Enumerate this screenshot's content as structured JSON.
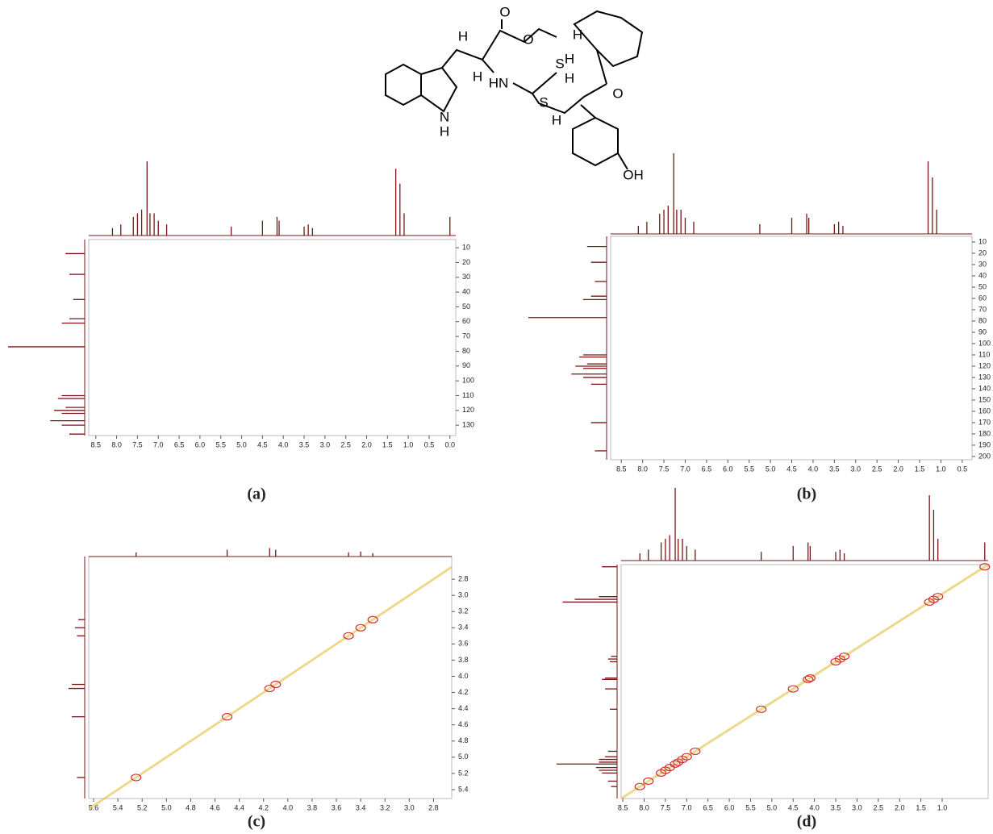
{
  "structure": {
    "labels": [
      "O",
      "O",
      "S",
      "HN",
      "H",
      "H",
      "H",
      "H",
      "H",
      "O",
      "S",
      "H",
      "N",
      "H",
      "OH"
    ]
  },
  "proton_peaks": [
    8.1,
    7.9,
    7.6,
    7.5,
    7.4,
    7.27,
    7.2,
    7.1,
    7.0,
    6.8,
    5.25,
    4.5,
    4.15,
    4.1,
    3.5,
    3.4,
    3.3,
    1.3,
    1.2,
    1.1,
    0.0
  ],
  "proton_heights": [
    0.1,
    0.15,
    0.25,
    0.3,
    0.35,
    1.0,
    0.3,
    0.3,
    0.2,
    0.15,
    0.12,
    0.2,
    0.25,
    0.2,
    0.12,
    0.15,
    0.1,
    0.9,
    0.7,
    0.3,
    0.25
  ],
  "carbon_peaks": [
    14,
    28,
    45,
    58,
    61,
    77,
    110,
    112,
    118,
    120,
    122,
    127,
    130,
    136,
    170,
    195
  ],
  "carbon_heights": [
    0.25,
    0.2,
    0.15,
    0.2,
    0.3,
    1.0,
    0.3,
    0.35,
    0.25,
    0.4,
    0.3,
    0.45,
    0.3,
    0.2,
    0.2,
    0.15
  ],
  "panels": [
    {
      "label": "(a)",
      "xlim": [
        8.67,
        -0.14
      ],
      "ylim": [
        137,
        4.5
      ],
      "xticks": [
        8.5,
        {
          "value": 8,
          "label": "8.0"
        },
        7.5,
        {
          "value": 7,
          "label": "7.0"
        },
        6.5,
        {
          "value": 6,
          "label": "6.0"
        },
        5.5,
        {
          "value": 5,
          "label": "5.0"
        },
        4.5,
        {
          "value": 4,
          "label": "4.0"
        },
        3.5,
        {
          "value": 3,
          "label": "3.0"
        },
        2.5,
        {
          "value": 2,
          "label": "2.0"
        },
        1.5,
        {
          "value": 1,
          "label": "1.0"
        },
        0.5,
        {
          "value": 0,
          "label": "0.0"
        }
      ],
      "yticks": [
        10,
        20,
        30,
        40,
        50,
        60,
        70,
        80,
        90,
        100,
        110,
        120,
        130
      ]
    },
    {
      "label": "(b)",
      "xlim": [
        8.75,
        0.27
      ],
      "ylim": [
        202.9,
        5
      ],
      "xticks": [
        8.5,
        {
          "value": 8,
          "label": "8.0"
        },
        7.5,
        {
          "value": 7,
          "label": "7.0"
        },
        6.5,
        {
          "value": 6,
          "label": "6.0"
        },
        5.5,
        {
          "value": 5,
          "label": "5.0"
        },
        4.5,
        {
          "value": 4,
          "label": "4.0"
        },
        3.5,
        {
          "value": 3,
          "label": "3.0"
        },
        2.5,
        {
          "value": 2,
          "label": "2.0"
        },
        1.5,
        {
          "value": 1,
          "label": "1.0"
        },
        0.5
      ],
      "yticks": [
        10,
        20,
        30,
        40,
        50,
        60,
        70,
        80,
        90,
        100,
        110,
        120,
        130,
        140,
        150,
        160,
        170,
        180,
        190,
        200
      ]
    },
    {
      "label": "(c)",
      "xlim": [
        5.64,
        2.65
      ],
      "ylim": [
        5.51,
        2.52
      ],
      "xticks": [
        5.6,
        5.4,
        5.2,
        {
          "value": 5,
          "label": "5.0"
        },
        4.8,
        4.6,
        4.4,
        4.2,
        {
          "value": 4,
          "label": "4.0"
        },
        3.8,
        3.6,
        3.4,
        3.2,
        {
          "value": 3,
          "label": "3.0"
        },
        2.8
      ],
      "yticks": [
        2.8,
        {
          "value": 3,
          "label": "3.0"
        },
        3.2,
        3.4,
        3.6,
        3.8,
        {
          "value": 4,
          "label": "4.0"
        },
        4.2,
        4.4,
        4.6,
        4.8,
        {
          "value": 5,
          "label": "5.0"
        },
        5.2,
        5.4
      ]
    },
    {
      "label": "(d)",
      "xlim": [
        8.54,
        -0.08
      ],
      "ylim": [
        8.54,
        -0.08
      ],
      "xticks": [
        8.5,
        {
          "value": 8,
          "label": "8.0"
        },
        7.5,
        {
          "value": 7,
          "label": "7.0"
        },
        6.5,
        {
          "value": 6,
          "label": "6.0"
        },
        5.5,
        {
          "value": 5,
          "label": "5.0"
        },
        4.5,
        {
          "value": 4,
          "label": "4.0"
        },
        3.5,
        {
          "value": 3,
          "label": "3.0"
        },
        2.5,
        {
          "value": 2,
          "label": "2.0"
        },
        1.5,
        {
          "value": 1,
          "label": "1.0"
        }
      ]
    }
  ]
}
